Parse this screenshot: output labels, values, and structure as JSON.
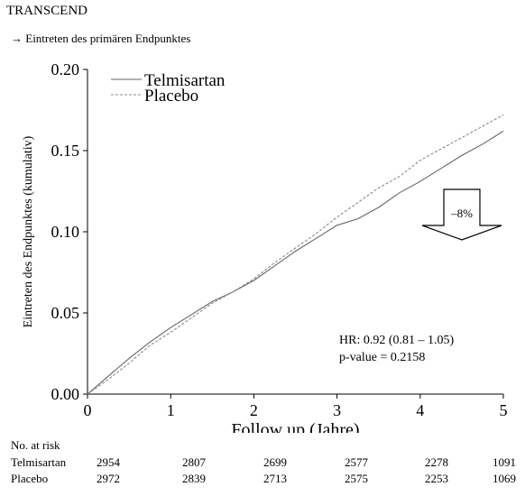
{
  "header": {
    "title": "TRANSCEND",
    "subtitle_arrow": "→",
    "subtitle": "Eintreten des primären Endpunktes"
  },
  "chart_data": {
    "type": "line",
    "xlabel": "Follow up (Jahre)",
    "ylabel": "Eintreten des Endpunktes (kumulativ)",
    "xlim": [
      0,
      5
    ],
    "ylim": [
      0,
      0.2
    ],
    "xticks": [
      "0",
      "1",
      "2",
      "3",
      "4",
      "5"
    ],
    "yticks": [
      "0.00",
      "0.05",
      "0.10",
      "0.15",
      "0.20"
    ],
    "grid": false,
    "legend_position": "top-left",
    "series": [
      {
        "name": "Telmisartan",
        "line_style": "solid",
        "color": "#666666",
        "x": [
          0,
          0.25,
          0.5,
          0.75,
          1.0,
          1.25,
          1.5,
          1.75,
          2.0,
          2.25,
          2.5,
          2.75,
          3.0,
          3.25,
          3.5,
          3.75,
          4.0,
          4.25,
          4.5,
          4.75,
          5.0
        ],
        "y": [
          0,
          0.011,
          0.022,
          0.032,
          0.041,
          0.049,
          0.057,
          0.063,
          0.07,
          0.079,
          0.088,
          0.096,
          0.104,
          0.108,
          0.115,
          0.124,
          0.131,
          0.139,
          0.147,
          0.154,
          0.162
        ]
      },
      {
        "name": "Placebo",
        "line_style": "dashed",
        "color": "#888888",
        "x": [
          0,
          0.25,
          0.5,
          0.75,
          1.0,
          1.25,
          1.5,
          1.75,
          2.0,
          2.25,
          2.5,
          2.75,
          3.0,
          3.25,
          3.5,
          3.75,
          4.0,
          4.25,
          4.5,
          4.75,
          5.0
        ],
        "y": [
          0,
          0.009,
          0.019,
          0.03,
          0.038,
          0.047,
          0.056,
          0.063,
          0.071,
          0.081,
          0.09,
          0.099,
          0.109,
          0.118,
          0.127,
          0.134,
          0.144,
          0.151,
          0.158,
          0.165,
          0.172
        ]
      }
    ],
    "annotations": {
      "reduction_label": "–8%",
      "hr_text": "HR: 0.92 (0.81 – 1.05)",
      "p_text": "p-value = 0.2158"
    }
  },
  "risk_table": {
    "header": "No. at risk",
    "rows": [
      {
        "label": "Telmisartan",
        "values": [
          "2954",
          "2807",
          "2699",
          "2577",
          "2278",
          "1091"
        ]
      },
      {
        "label": "Placebo",
        "values": [
          "2972",
          "2839",
          "2713",
          "2575",
          "2253",
          "1069"
        ]
      }
    ]
  }
}
